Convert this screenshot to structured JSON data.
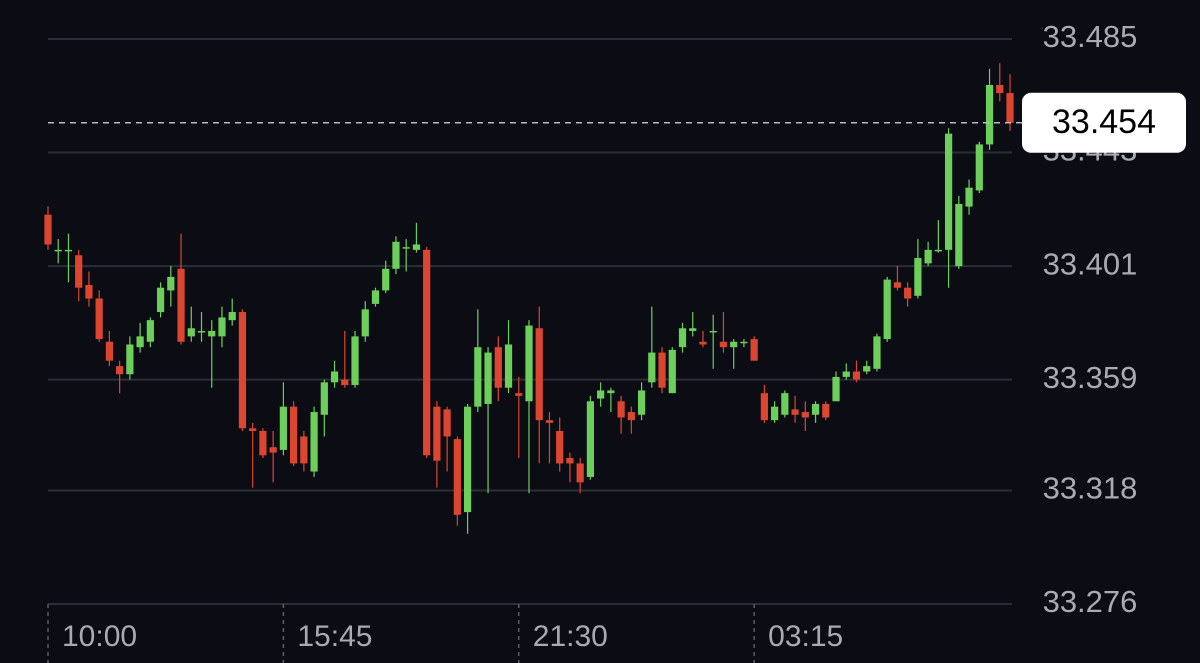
{
  "chart_data": {
    "type": "candlestick",
    "categories": [
      "10:00",
      null,
      null,
      null,
      null,
      null,
      null,
      null,
      null,
      null,
      null,
      null,
      null,
      null,
      null,
      null,
      null,
      null,
      null,
      null,
      null,
      null,
      null,
      "15:45",
      null,
      null,
      null,
      null,
      null,
      null,
      null,
      null,
      null,
      null,
      null,
      null,
      null,
      null,
      null,
      null,
      null,
      null,
      null,
      null,
      null,
      null,
      "21:30",
      null,
      null,
      null,
      null,
      null,
      null,
      null,
      null,
      null,
      null,
      null,
      null,
      null,
      null,
      null,
      null,
      null,
      null,
      null,
      null,
      null,
      null,
      "03:15",
      null,
      null,
      null,
      null,
      null,
      null,
      null,
      null,
      null,
      null,
      null,
      null,
      null,
      null,
      null,
      null,
      null,
      null,
      null,
      null,
      null,
      null,
      null,
      null,
      null
    ],
    "open": [
      33.42,
      33.407,
      33.407,
      33.405,
      33.394,
      33.389,
      33.373,
      33.364,
      33.361,
      33.371,
      33.373,
      33.384,
      33.392,
      33.4,
      33.375,
      33.377,
      33.375,
      33.375,
      33.381,
      33.384,
      33.341,
      33.34,
      33.334,
      33.333,
      33.349,
      33.338,
      33.325,
      33.346,
      33.358,
      33.359,
      33.357,
      33.375,
      33.387,
      33.392,
      33.4,
      33.408,
      33.407,
      33.407,
      33.349,
      33.348,
      33.337,
      33.31,
      33.349,
      33.35,
      33.371,
      33.356,
      33.354,
      33.351,
      33.378,
      33.344,
      33.34,
      33.33,
      33.328,
      33.323,
      33.352,
      33.354,
      33.351,
      33.347,
      33.346,
      33.358,
      33.369,
      33.354,
      33.371,
      33.377,
      33.373,
      33.377,
      33.373,
      33.371,
      33.373,
      33.374,
      33.354,
      33.344,
      33.346,
      33.348,
      33.347,
      33.346,
      33.35,
      33.351,
      33.36,
      33.362,
      33.362,
      33.363,
      33.374,
      33.395,
      33.393,
      33.39,
      33.402,
      33.407,
      33.407,
      33.401,
      33.423,
      33.429,
      33.446,
      33.468,
      33.465
    ],
    "high": [
      33.423,
      33.411,
      33.413,
      33.407,
      33.399,
      33.392,
      33.377,
      33.366,
      33.375,
      33.38,
      33.382,
      33.395,
      33.401,
      33.413,
      33.386,
      33.384,
      33.381,
      33.386,
      33.389,
      33.385,
      33.343,
      33.341,
      33.34,
      33.358,
      33.351,
      33.34,
      33.349,
      33.359,
      33.366,
      33.377,
      33.377,
      33.388,
      33.393,
      33.403,
      33.412,
      33.411,
      33.417,
      33.408,
      33.351,
      33.349,
      33.338,
      33.35,
      33.385,
      33.371,
      33.375,
      33.381,
      33.36,
      33.381,
      33.386,
      33.347,
      33.345,
      33.332,
      33.33,
      33.353,
      33.358,
      33.356,
      33.353,
      33.349,
      33.358,
      33.386,
      33.371,
      33.371,
      33.38,
      33.384,
      33.377,
      33.383,
      33.384,
      33.374,
      33.374,
      33.375,
      33.357,
      33.351,
      33.355,
      33.353,
      33.351,
      33.351,
      33.351,
      33.362,
      33.365,
      33.366,
      33.366,
      33.376,
      33.397,
      33.401,
      33.395,
      33.411,
      33.41,
      33.418,
      33.452,
      33.427,
      33.433,
      33.447,
      33.474,
      33.476,
      33.472
    ],
    "low": [
      33.407,
      33.402,
      33.395,
      33.388,
      33.386,
      33.373,
      33.364,
      33.354,
      33.359,
      33.369,
      33.371,
      33.382,
      33.386,
      33.372,
      33.373,
      33.373,
      33.356,
      33.371,
      33.379,
      33.34,
      33.319,
      33.33,
      33.321,
      33.331,
      33.327,
      33.325,
      33.323,
      33.338,
      33.356,
      33.356,
      33.356,
      33.373,
      33.386,
      33.391,
      33.398,
      33.399,
      33.406,
      33.33,
      33.319,
      33.325,
      33.305,
      33.302,
      33.347,
      33.317,
      33.351,
      33.354,
      33.33,
      33.317,
      33.328,
      33.328,
      33.325,
      33.321,
      33.317,
      33.322,
      33.349,
      33.347,
      33.339,
      33.339,
      33.344,
      33.356,
      33.354,
      33.354,
      33.369,
      33.375,
      33.371,
      33.363,
      33.369,
      33.363,
      33.371,
      33.366,
      33.343,
      33.343,
      33.345,
      33.343,
      33.34,
      33.343,
      33.344,
      33.351,
      33.359,
      33.358,
      33.361,
      33.362,
      33.373,
      33.392,
      33.386,
      33.389,
      33.401,
      33.406,
      33.393,
      33.4,
      33.42,
      33.428,
      33.444,
      33.462,
      33.451
    ],
    "close": [
      33.409,
      33.407,
      33.407,
      33.393,
      33.389,
      33.374,
      33.366,
      33.361,
      33.372,
      33.375,
      33.381,
      33.393,
      33.397,
      33.373,
      33.378,
      33.377,
      33.377,
      33.382,
      33.384,
      33.341,
      33.34,
      33.331,
      33.332,
      33.349,
      33.328,
      33.328,
      33.347,
      33.358,
      33.362,
      33.357,
      33.375,
      33.385,
      33.392,
      33.4,
      33.41,
      33.408,
      33.409,
      33.331,
      33.329,
      33.338,
      33.309,
      33.349,
      33.371,
      33.369,
      33.356,
      33.372,
      33.353,
      33.379,
      33.344,
      33.343,
      33.328,
      33.328,
      33.321,
      33.351,
      33.355,
      33.355,
      33.345,
      33.344,
      33.355,
      33.369,
      33.356,
      33.37,
      33.378,
      33.378,
      33.372,
      33.377,
      33.371,
      33.373,
      33.373,
      33.366,
      33.344,
      33.349,
      33.354,
      33.346,
      33.345,
      33.35,
      33.345,
      33.36,
      33.362,
      33.359,
      33.364,
      33.375,
      33.396,
      33.393,
      33.389,
      33.404,
      33.407,
      33.407,
      33.45,
      33.424,
      33.43,
      33.446,
      33.468,
      33.465,
      33.454
    ],
    "up_color": "#6ccf5b",
    "down_color": "#dc4530",
    "ylim": [
      33.276,
      33.485
    ],
    "yticks": [
      33.276,
      33.318,
      33.359,
      33.401,
      33.443,
      33.485
    ],
    "grid": true,
    "last_price": 33.454
  }
}
